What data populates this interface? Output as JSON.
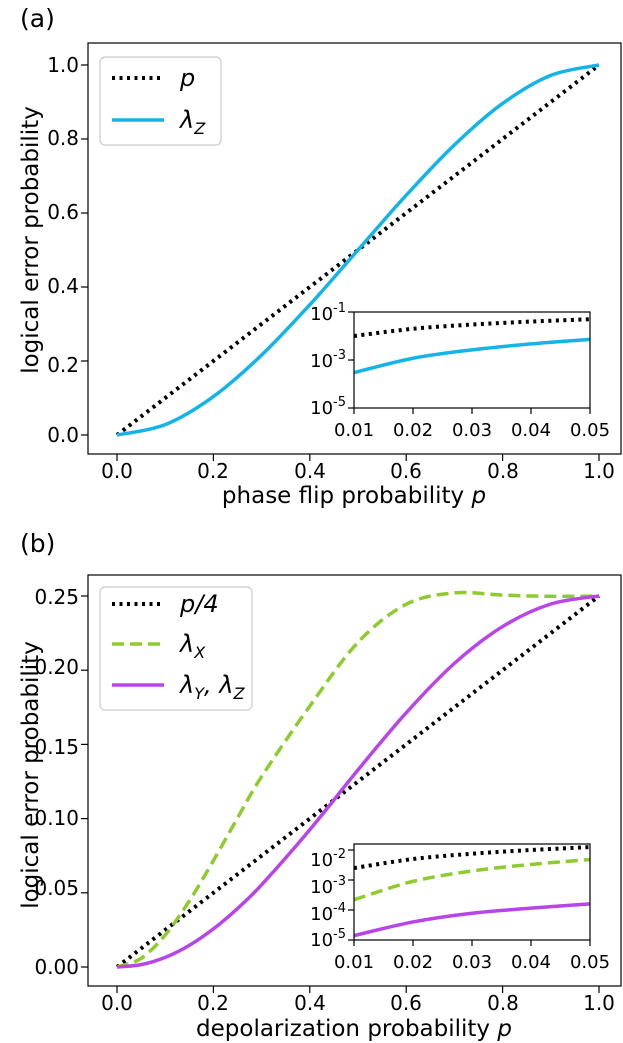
{
  "chart_data": [
    {
      "panel": "(a)",
      "type": "line",
      "xlabel": "phase flip probability p",
      "ylabel": "logical error probability",
      "xlim": [
        0,
        1
      ],
      "ylim": [
        0,
        1
      ],
      "xticks": [
        "0.0",
        "0.2",
        "0.4",
        "0.6",
        "0.8",
        "1.0"
      ],
      "yticks": [
        "0.0",
        "0.2",
        "0.4",
        "0.6",
        "0.8",
        "1.0"
      ],
      "legend_position": "top-left",
      "series": [
        {
          "name": "p",
          "style": "dotted",
          "color": "#000000",
          "x": [
            0,
            0.1,
            0.2,
            0.3,
            0.4,
            0.5,
            0.6,
            0.7,
            0.8,
            0.9,
            1.0
          ],
          "y": [
            0,
            0.1,
            0.2,
            0.3,
            0.4,
            0.5,
            0.6,
            0.7,
            0.8,
            0.9,
            1.0
          ]
        },
        {
          "name": "λ_Z",
          "style": "solid",
          "color": "#13b4e8",
          "x": [
            0,
            0.1,
            0.2,
            0.3,
            0.4,
            0.5,
            0.6,
            0.7,
            0.8,
            0.9,
            1.0
          ],
          "y": [
            0,
            0.028,
            0.104,
            0.216,
            0.352,
            0.5,
            0.648,
            0.784,
            0.896,
            0.972,
            1.0
          ]
        }
      ],
      "inset": {
        "xlim": [
          0.01,
          0.05
        ],
        "ylog_exponent_range": [
          -5,
          -1
        ],
        "xticks": [
          "0.01",
          "0.02",
          "0.03",
          "0.04",
          "0.05"
        ],
        "ytick_base": "10",
        "ytick_exponents": [
          "-1",
          "-3",
          "-5"
        ],
        "series": [
          {
            "name": "p",
            "x": [
              0.01,
              0.02,
              0.03,
              0.04,
              0.05
            ],
            "y": [
              0.01,
              0.02,
              0.03,
              0.04,
              0.05
            ]
          },
          {
            "name": "λ_Z",
            "x": [
              0.01,
              0.02,
              0.03,
              0.04,
              0.05
            ],
            "y": [
              0.000298,
              0.001184,
              0.002646,
              0.004672,
              0.00725
            ]
          }
        ]
      }
    },
    {
      "panel": "(b)",
      "type": "line",
      "xlabel": "depolarization probability p",
      "ylabel": "logical error probability",
      "xlim": [
        0,
        1
      ],
      "ylim": [
        0,
        0.25
      ],
      "xticks": [
        "0.0",
        "0.2",
        "0.4",
        "0.6",
        "0.8",
        "1.0"
      ],
      "yticks": [
        "0.00",
        "0.05",
        "0.10",
        "0.15",
        "0.20",
        "0.25"
      ],
      "legend_position": "top-left",
      "series": [
        {
          "name": "p/4",
          "style": "dotted",
          "color": "#000000",
          "x": [
            0,
            0.2,
            0.4,
            0.6,
            0.8,
            1.0
          ],
          "y": [
            0,
            0.05,
            0.1,
            0.15,
            0.2,
            0.25
          ]
        },
        {
          "name": "λ_X",
          "style": "dashed",
          "color": "#8ecb2e",
          "x": [
            0,
            0.05,
            0.1,
            0.15,
            0.2,
            0.25,
            0.3,
            0.4,
            0.5,
            0.6,
            0.7,
            0.8,
            0.9,
            1.0
          ],
          "y": [
            0,
            0.0058,
            0.0216,
            0.0445,
            0.0717,
            0.1004,
            0.1283,
            0.1758,
            0.2188,
            0.2444,
            0.2521,
            0.2506,
            0.2498,
            0.25
          ]
        },
        {
          "name": "λ_Y, λ_Z",
          "style": "solid",
          "color": "#b845e8",
          "x": [
            0,
            0.05,
            0.1,
            0.15,
            0.2,
            0.25,
            0.3,
            0.4,
            0.5,
            0.6,
            0.7,
            0.8,
            0.9,
            1.0
          ],
          "y": [
            0,
            0.0016,
            0.0065,
            0.0146,
            0.0257,
            0.0394,
            0.0554,
            0.0925,
            0.1328,
            0.1713,
            0.2046,
            0.2294,
            0.2446,
            0.25
          ]
        }
      ],
      "inset": {
        "xlim": [
          0.01,
          0.05
        ],
        "ylog_exponent_range": [
          -5,
          -1.8
        ],
        "xticks": [
          "0.01",
          "0.02",
          "0.03",
          "0.04",
          "0.05"
        ],
        "ytick_base": "10",
        "ytick_exponents": [
          "-2",
          "-3",
          "-4",
          "-5"
        ],
        "series": [
          {
            "name": "p/4",
            "x": [
              0.01,
              0.02,
              0.03,
              0.04,
              0.05
            ],
            "y": [
              0.0025,
              0.005,
              0.0075,
              0.01,
              0.0125
            ]
          },
          {
            "name": "λ_X",
            "x": [
              0.01,
              0.02,
              0.03,
              0.04,
              0.05
            ],
            "y": [
              0.00022,
              0.0009,
              0.002,
              0.0033,
              0.0048
            ]
          },
          {
            "name": "λ_Y, λ_Z",
            "x": [
              0.01,
              0.02,
              0.03,
              0.04,
              0.05
            ],
            "y": [
              1.4e-05,
              4e-05,
              7.8e-05,
              0.000115,
              0.00016
            ]
          }
        ]
      }
    }
  ]
}
